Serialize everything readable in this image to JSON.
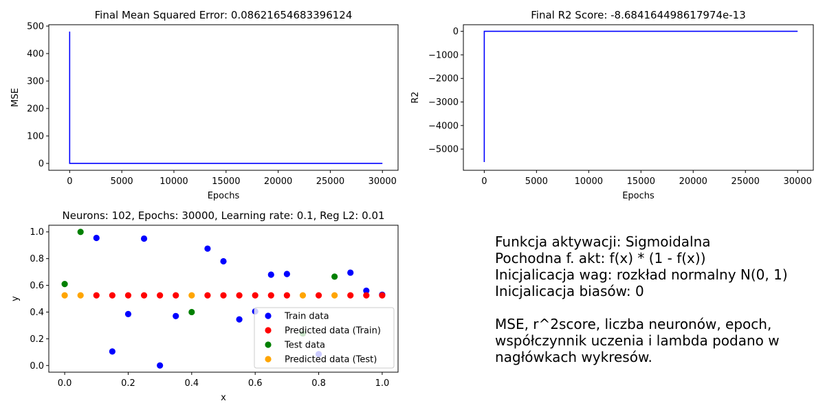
{
  "chart_data": [
    {
      "type": "line",
      "title": "Final Mean Squared Error: 0.08621654683396124",
      "xlabel": "Epochs",
      "ylabel": "MSE",
      "xlim": [
        -2000,
        31500
      ],
      "ylim": [
        -25,
        505
      ],
      "xticks": [
        0,
        5000,
        10000,
        15000,
        20000,
        25000,
        30000
      ],
      "yticks": [
        0,
        100,
        200,
        300,
        400,
        500
      ],
      "series": [
        {
          "color": "#0000ff",
          "x": [
            0,
            1,
            30000
          ],
          "y": [
            480,
            0.09,
            0.09
          ]
        }
      ]
    },
    {
      "type": "line",
      "title": "Final R2 Score: -8.684164498617974e-13",
      "xlabel": "Epochs",
      "ylabel": "R2",
      "xlim": [
        -2000,
        31500
      ],
      "ylim": [
        -5900,
        280
      ],
      "xticks": [
        0,
        5000,
        10000,
        15000,
        20000,
        25000,
        30000
      ],
      "yticks": [
        -5000,
        -4000,
        -3000,
        -2000,
        -1000,
        0
      ],
      "series": [
        {
          "color": "#0000ff",
          "x": [
            0,
            1,
            30000
          ],
          "y": [
            -5550,
            0,
            0
          ]
        }
      ]
    },
    {
      "type": "scatter",
      "title": "Neurons: 102, Epochs: 30000, Learning rate: 0.1, Reg L2: 0.01",
      "xlabel": "x",
      "ylabel": "y",
      "xlim": [
        -0.05,
        1.05
      ],
      "ylim": [
        -0.05,
        1.05
      ],
      "xticks": [
        0.0,
        0.2,
        0.4,
        0.6,
        0.8,
        1.0
      ],
      "yticks": [
        0.0,
        0.2,
        0.4,
        0.6,
        0.8,
        1.0
      ],
      "legend": "lower-right",
      "series": [
        {
          "name": "Train data",
          "color": "#0000ff",
          "x": [
            0.1,
            0.15,
            0.2,
            0.25,
            0.3,
            0.35,
            0.45,
            0.5,
            0.55,
            0.6,
            0.65,
            0.7,
            0.8,
            0.9,
            0.95,
            1.0
          ],
          "y": [
            0.955,
            0.105,
            0.385,
            0.95,
            0.0,
            0.37,
            0.875,
            0.78,
            0.345,
            0.405,
            0.68,
            0.685,
            0.085,
            0.695,
            0.56,
            0.53
          ]
        },
        {
          "name": "Predicted data (Train)",
          "color": "#ff0000",
          "x": [
            0.1,
            0.15,
            0.2,
            0.25,
            0.3,
            0.35,
            0.45,
            0.5,
            0.55,
            0.6,
            0.65,
            0.7,
            0.8,
            0.9,
            0.95,
            1.0
          ],
          "y": [
            0.525,
            0.525,
            0.525,
            0.525,
            0.525,
            0.525,
            0.525,
            0.525,
            0.525,
            0.525,
            0.525,
            0.525,
            0.525,
            0.525,
            0.525,
            0.525
          ]
        },
        {
          "name": "Test data",
          "color": "#008000",
          "x": [
            0.0,
            0.05,
            0.4,
            0.75,
            0.85
          ],
          "y": [
            0.61,
            1.0,
            0.4,
            0.24,
            0.665
          ]
        },
        {
          "name": "Predicted data (Test)",
          "color": "#ffa500",
          "x": [
            0.0,
            0.05,
            0.4,
            0.75,
            0.85
          ],
          "y": [
            0.525,
            0.525,
            0.525,
            0.525,
            0.525
          ]
        }
      ]
    }
  ],
  "info_text": "Funkcja aktywacji: Sigmoidalna\nPochodna f. akt: f(x) * (1 - f(x))\nInicjalicacja wag: rozkład normalny N(0, 1)\nInicjalicacja biasów: 0\n\nMSE, r^2score, liczba neuronów, epoch,\nwspółczynnik uczenia i lambda podano w\nnagłówkach wykresów."
}
